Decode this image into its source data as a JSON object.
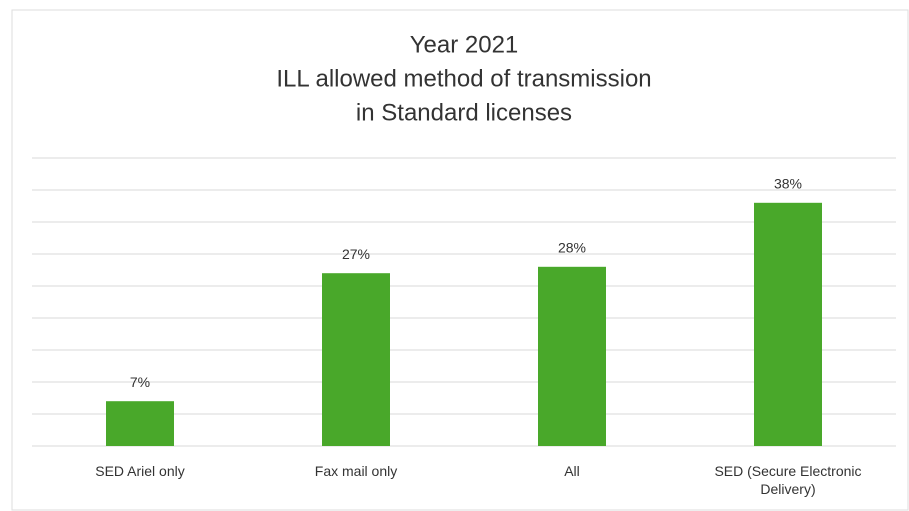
{
  "chart_data": {
    "type": "bar",
    "title": [
      "Year 2021",
      "ILL allowed method of transmission",
      "in Standard licenses"
    ],
    "categories": [
      "SED Ariel only",
      "Fax mail only",
      "All",
      "SED (Secure Electronic Delivery)"
    ],
    "values": [
      7,
      27,
      28,
      38
    ],
    "value_labels": [
      "7%",
      "27%",
      "28%",
      "38%"
    ],
    "color": "#49a82a",
    "ylim": [
      0,
      45
    ],
    "yticks": [
      0,
      5,
      10,
      15,
      20,
      25,
      30,
      35,
      40,
      45
    ],
    "grid": true
  }
}
